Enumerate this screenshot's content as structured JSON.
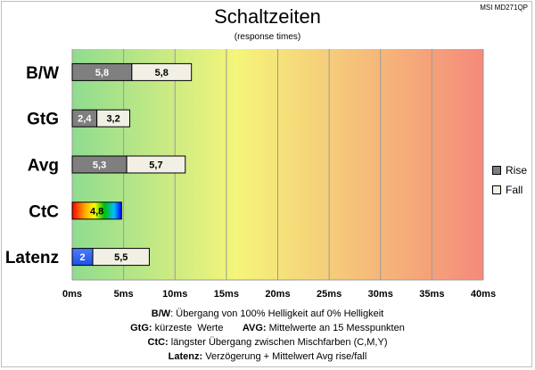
{
  "header": {
    "title": "Schaltzeiten",
    "subtitle": "(response times)",
    "model": "MSI MD271QP"
  },
  "legend": {
    "rise_label": "Rise",
    "fall_label": "Fall",
    "rise_color": "#7f7f7f",
    "fall_color": "#f2f0e4"
  },
  "footnotes": {
    "line1_key": "B/W",
    "line1_text": ":  Übergang von 100% Helligkeit auf 0% Helligkeit",
    "line2_key": "GtG:",
    "line2_text": " kürzeste  Werte       ",
    "line2_key2": "AVG:",
    "line2_text2": " Mittelwerte  an 15 Messpunkten",
    "line3_key": "CtC:",
    "line3_text": " längster Übergang  zwischen Mischfarben  (C,M,Y)",
    "line4_key": "Latenz:",
    "line4_text": " Verzögerung  + Mittelwert Avg rise/fall"
  },
  "chart_data": {
    "type": "bar",
    "orientation": "horizontal",
    "stacked": true,
    "categories": [
      "B/W",
      "GtG",
      "Avg",
      "CtC",
      "Latenz"
    ],
    "series": [
      {
        "name": "Rise",
        "values": [
          5.8,
          2.4,
          5.3,
          4.8,
          2
        ],
        "labels": [
          "5,8",
          "2,4",
          "5,3",
          "4,8",
          "2"
        ]
      },
      {
        "name": "Fall",
        "values": [
          5.8,
          3.2,
          5.7,
          null,
          5.5
        ],
        "labels": [
          "5,8",
          "3,2",
          "5,7",
          "",
          "5,5"
        ]
      }
    ],
    "xlim": [
      0,
      40
    ],
    "x_ticks": [
      0,
      5,
      10,
      15,
      20,
      25,
      30,
      35,
      40
    ],
    "x_tick_labels": [
      "0ms",
      "5ms",
      "10ms",
      "15ms",
      "20ms",
      "25ms",
      "30ms",
      "35ms",
      "40ms"
    ],
    "grid": true,
    "legend_position": "right",
    "background_gradient": [
      "#8fdc8f",
      "#f5f57a",
      "#f58a7a"
    ],
    "special_styles": {
      "CtC": "rainbow",
      "Latenz": "blue"
    }
  }
}
